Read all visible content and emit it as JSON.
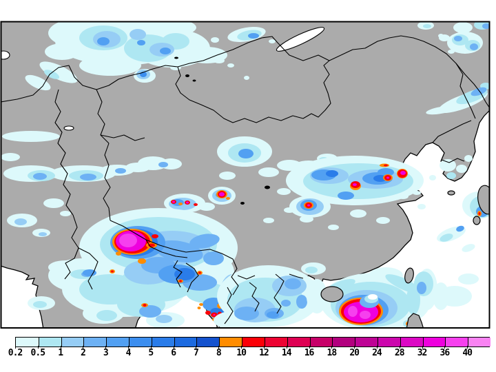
{
  "map": {
    "land_color": "#ABABAB",
    "ocean_color": "#FFFFFF",
    "line_color": "#000000",
    "region": "asia-precipitation-field",
    "features": [
      "coastlines",
      "country-borders",
      "lakes",
      "precipitation-shading",
      "typhoon-south-china-sea",
      "heavy-rain-core-tibet"
    ]
  },
  "colorbar": {
    "ticks": [
      "0.2",
      "0.5",
      "1",
      "2",
      "3",
      "4",
      "5",
      "6",
      "7",
      "8",
      "10",
      "12",
      "14",
      "16",
      "18",
      "20",
      "24",
      "28",
      "32",
      "36",
      "40"
    ],
    "colors": [
      "#DDF9FB",
      "#AEE7F2",
      "#96CDF5",
      "#6DB1F4",
      "#52A0F2",
      "#3C8EEF",
      "#2A7CE9",
      "#1C6AE0",
      "#1452CE",
      "#FF8C00",
      "#FB0007",
      "#ED0332",
      "#DE0052",
      "#C70068",
      "#B2007E",
      "#BE0495",
      "#CC06AD",
      "#DC08C4",
      "#EE00DE",
      "#F640EE",
      "#F983F2"
    ]
  }
}
